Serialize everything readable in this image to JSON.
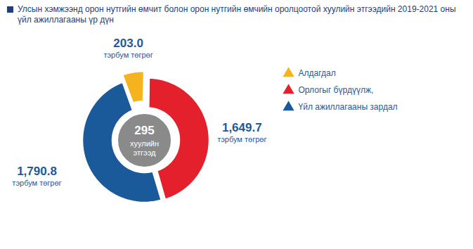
{
  "chart_data": {
    "type": "pie",
    "title": "Улсын хэмжээнд орон нутгийн өмчит болон орон нутгийн өмчийн оролцоотой хуулийн этгээдийн 2019-2021 оны үйл ажиллагааны үр дүн",
    "categories": [
      "Алдагдал",
      "Орлогыг бүрдүүлж,",
      "Үйл ажиллагааны зардал"
    ],
    "values": [
      203.0,
      1649.7,
      1790.8
    ],
    "value_labels": [
      "203.0",
      "1,649.7",
      "1,790.8"
    ],
    "colors": [
      "#f5b41e",
      "#e3202c",
      "#1b5a9a"
    ],
    "unit": "тэрбум төгрөг",
    "center_value": 295,
    "center_label": "хуулийн этгээд",
    "data_labels": true,
    "legend": "right"
  }
}
